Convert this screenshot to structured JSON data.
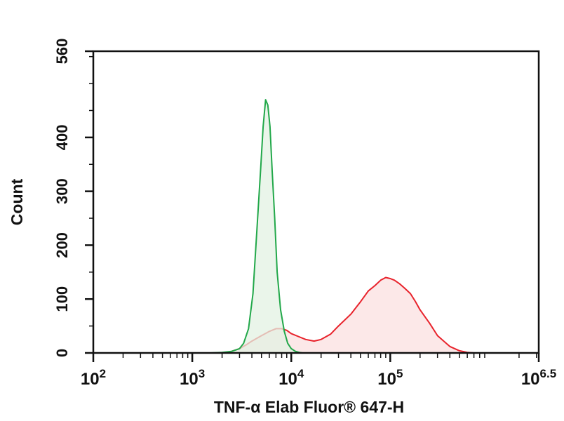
{
  "chart_data": {
    "type": "area",
    "xlabel": "TNF-α Elab Fluor® 647-H",
    "ylabel": "Count",
    "x_scale": "log",
    "xlim": [
      100,
      3162278
    ],
    "ylim": [
      0,
      560
    ],
    "x_ticks": [
      {
        "value": 100,
        "base": "10",
        "exp": "2"
      },
      {
        "value": 1000,
        "base": "10",
        "exp": "3"
      },
      {
        "value": 10000,
        "base": "10",
        "exp": "4"
      },
      {
        "value": 100000,
        "base": "10",
        "exp": "5"
      },
      {
        "value": 3162278,
        "base": "10",
        "exp": "6.5"
      }
    ],
    "y_ticks": [
      "0",
      "100",
      "200",
      "300",
      "400",
      "560"
    ],
    "y_tick_values": [
      0,
      100,
      200,
      300,
      400,
      560
    ],
    "grid": false,
    "legend": "none",
    "series": [
      {
        "color": "#22a84a",
        "fill": "#e3f2e3",
        "x": [
          1500,
          2000,
          2500,
          3000,
          3300,
          3700,
          4100,
          4500,
          4900,
          5200,
          5500,
          5800,
          6100,
          6400,
          6800,
          7200,
          7800,
          8500,
          9200,
          10000,
          11000,
          12000,
          13000
        ],
        "y": [
          0,
          1,
          3,
          8,
          18,
          45,
          110,
          230,
          340,
          420,
          470,
          460,
          420,
          340,
          250,
          150,
          80,
          40,
          18,
          8,
          3,
          1,
          0
        ]
      },
      {
        "color": "#e8222b",
        "fill": "#fbe0e0",
        "x": [
          2000,
          2500,
          3000,
          3500,
          4000,
          5000,
          6000,
          7000,
          8000,
          9000,
          10000,
          12000,
          14000,
          17000,
          20000,
          25000,
          30000,
          40000,
          50000,
          60000,
          70000,
          80000,
          90000,
          100000,
          110000,
          125000,
          140000,
          160000,
          180000,
          200000,
          250000,
          300000,
          400000,
          500000,
          600000,
          700000
        ],
        "y": [
          0,
          3,
          8,
          15,
          22,
          32,
          40,
          45,
          45,
          42,
          36,
          30,
          25,
          22,
          25,
          35,
          50,
          72,
          95,
          115,
          125,
          135,
          140,
          138,
          135,
          128,
          120,
          110,
          95,
          80,
          55,
          32,
          12,
          4,
          1,
          0
        ]
      }
    ]
  }
}
